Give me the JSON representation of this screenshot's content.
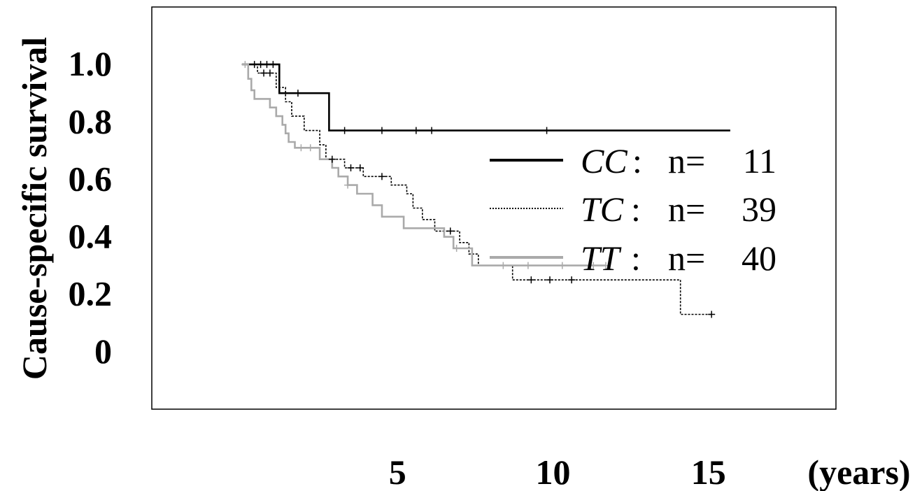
{
  "chart_data": {
    "type": "line",
    "title": "",
    "xlabel": "(years)",
    "ylabel": "Cause-specific survival",
    "xlim": [
      -2.9,
      19.1
    ],
    "ylim": [
      -0.2,
      1.2
    ],
    "x_ticks": [
      5,
      10,
      15
    ],
    "x_tick_labels": [
      "5",
      "10",
      "15"
    ],
    "y_ticks": [
      0,
      0.2,
      0.4,
      0.6,
      0.8,
      1.0
    ],
    "y_tick_labels": [
      "0",
      "0.2",
      "0.4",
      "0.6",
      "0.8",
      "1.0"
    ],
    "grid": false,
    "legend_position": "right",
    "series": [
      {
        "name": "CC",
        "legend_n_label": "n=",
        "legend_n": "11",
        "color": "#000000",
        "style": "solid",
        "steps": [
          [
            0,
            1.0
          ],
          [
            1.2,
            1.0
          ],
          [
            1.2,
            0.9
          ],
          [
            2.8,
            0.9
          ],
          [
            2.8,
            0.77
          ],
          [
            15.7,
            0.77
          ]
        ],
        "censor_x": [
          0.4,
          0.6,
          0.8,
          1.0,
          1.8,
          3.3,
          4.5,
          5.6,
          6.1,
          9.8
        ]
      },
      {
        "name": "TC",
        "legend_n_label": "n=",
        "legend_n": "39",
        "color": "#000000",
        "style": "dotted",
        "steps": [
          [
            0,
            1.0
          ],
          [
            0.5,
            1.0
          ],
          [
            0.5,
            0.97
          ],
          [
            1.1,
            0.97
          ],
          [
            1.1,
            0.92
          ],
          [
            1.4,
            0.92
          ],
          [
            1.4,
            0.87
          ],
          [
            1.6,
            0.87
          ],
          [
            1.6,
            0.82
          ],
          [
            2.0,
            0.82
          ],
          [
            2.0,
            0.77
          ],
          [
            2.5,
            0.77
          ],
          [
            2.5,
            0.72
          ],
          [
            2.7,
            0.72
          ],
          [
            2.7,
            0.67
          ],
          [
            3.3,
            0.67
          ],
          [
            3.3,
            0.64
          ],
          [
            3.9,
            0.64
          ],
          [
            3.9,
            0.61
          ],
          [
            4.8,
            0.61
          ],
          [
            4.8,
            0.58
          ],
          [
            5.3,
            0.58
          ],
          [
            5.3,
            0.55
          ],
          [
            5.5,
            0.55
          ],
          [
            5.5,
            0.5
          ],
          [
            5.8,
            0.5
          ],
          [
            5.8,
            0.46
          ],
          [
            6.2,
            0.46
          ],
          [
            6.2,
            0.42
          ],
          [
            7.0,
            0.42
          ],
          [
            7.0,
            0.38
          ],
          [
            7.3,
            0.38
          ],
          [
            7.3,
            0.34
          ],
          [
            7.6,
            0.34
          ],
          [
            7.6,
            0.3
          ],
          [
            8.7,
            0.3
          ],
          [
            8.7,
            0.25
          ],
          [
            14.1,
            0.25
          ],
          [
            14.1,
            0.13
          ],
          [
            15.1,
            0.13
          ]
        ],
        "censor_x": [
          0.7,
          0.9,
          2.9,
          3.5,
          3.8,
          4.5,
          6.7,
          9.3,
          9.9,
          10.6,
          15.1
        ]
      },
      {
        "name": "TT",
        "legend_n_label": "n=",
        "legend_n": "40",
        "color": "#aaaaaa",
        "style": "solid",
        "steps": [
          [
            0,
            1.0
          ],
          [
            0.2,
            1.0
          ],
          [
            0.2,
            0.95
          ],
          [
            0.3,
            0.95
          ],
          [
            0.3,
            0.91
          ],
          [
            0.4,
            0.91
          ],
          [
            0.4,
            0.88
          ],
          [
            0.9,
            0.88
          ],
          [
            0.9,
            0.85
          ],
          [
            1.1,
            0.85
          ],
          [
            1.1,
            0.82
          ],
          [
            1.3,
            0.82
          ],
          [
            1.3,
            0.79
          ],
          [
            1.4,
            0.79
          ],
          [
            1.4,
            0.76
          ],
          [
            1.5,
            0.76
          ],
          [
            1.5,
            0.73
          ],
          [
            1.7,
            0.73
          ],
          [
            1.7,
            0.71
          ],
          [
            2.5,
            0.71
          ],
          [
            2.5,
            0.67
          ],
          [
            2.9,
            0.67
          ],
          [
            2.9,
            0.64
          ],
          [
            3.1,
            0.64
          ],
          [
            3.1,
            0.61
          ],
          [
            3.4,
            0.61
          ],
          [
            3.4,
            0.58
          ],
          [
            3.7,
            0.58
          ],
          [
            3.7,
            0.55
          ],
          [
            4.2,
            0.55
          ],
          [
            4.2,
            0.51
          ],
          [
            4.5,
            0.51
          ],
          [
            4.5,
            0.47
          ],
          [
            5.2,
            0.47
          ],
          [
            5.2,
            0.43
          ],
          [
            6.5,
            0.43
          ],
          [
            6.5,
            0.4
          ],
          [
            6.8,
            0.4
          ],
          [
            6.8,
            0.36
          ],
          [
            7.4,
            0.36
          ],
          [
            7.4,
            0.3
          ],
          [
            11.7,
            0.3
          ]
        ],
        "censor_x": [
          0.1,
          1.9,
          2.2,
          3.4,
          6.9,
          8.4,
          9.2,
          10.3,
          11.3,
          11.7
        ]
      }
    ]
  }
}
